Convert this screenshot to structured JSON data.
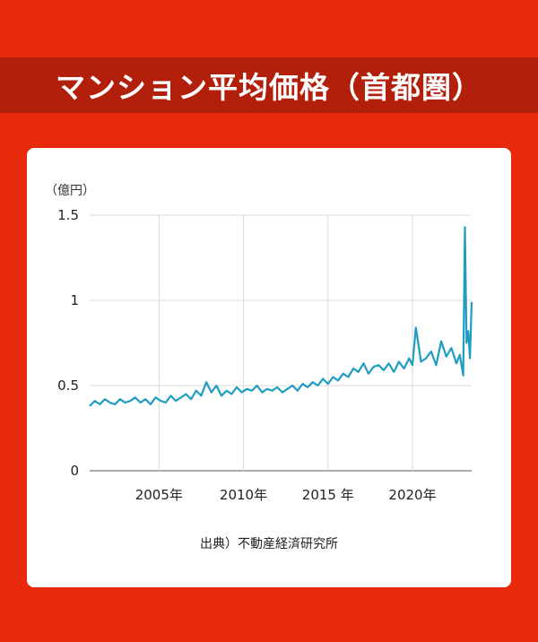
{
  "title": "マンション平均価格（首都圏）",
  "source": "出典）不動産経済研究所",
  "colors": {
    "background": "#e8290b",
    "band": "#b2200c",
    "line": "#1f9cc2",
    "grid": "#d9d9d9"
  },
  "chart_data": {
    "type": "line",
    "unit_label": "（億円）",
    "ylim": [
      0,
      1.5
    ],
    "xlim": [
      2000.9,
      2023.5
    ],
    "y_ticks": [
      "0",
      "0.5",
      "1",
      "1.5"
    ],
    "x_ticks": [
      "2005年",
      "2010年",
      "2015 年",
      "2020年"
    ],
    "grid": "vertical and horizontal",
    "series": [
      {
        "x": [
          2000.9,
          2001.2,
          2001.5,
          2001.8,
          2002.1,
          2002.4,
          2002.7,
          2003.0,
          2003.3,
          2003.6,
          2003.9,
          2004.2,
          2004.5,
          2004.8,
          2005.1,
          2005.4,
          2005.7,
          2006.0,
          2006.3,
          2006.6,
          2006.9,
          2007.2,
          2007.5,
          2007.8,
          2008.1,
          2008.4,
          2008.7,
          2009.0,
          2009.3,
          2009.6,
          2009.9,
          2010.2,
          2010.5,
          2010.8,
          2011.1,
          2011.4,
          2011.7,
          2012.0,
          2012.3,
          2012.6,
          2012.9,
          2013.2,
          2013.5,
          2013.8,
          2014.1,
          2014.4,
          2014.7,
          2015.0,
          2015.3,
          2015.6,
          2015.9,
          2016.2,
          2016.5,
          2016.8,
          2017.1,
          2017.4,
          2017.7,
          2018.0,
          2018.3,
          2018.6,
          2018.9,
          2019.2,
          2019.5,
          2019.8,
          2020.0,
          2020.2,
          2020.5,
          2020.8,
          2021.1,
          2021.4,
          2021.7,
          2022.0,
          2022.3,
          2022.6,
          2022.8,
          2023.0,
          2023.1,
          2023.2,
          2023.3,
          2023.4,
          2023.5
        ],
        "y": [
          0.38,
          0.41,
          0.39,
          0.42,
          0.4,
          0.39,
          0.42,
          0.4,
          0.41,
          0.43,
          0.4,
          0.42,
          0.39,
          0.43,
          0.41,
          0.4,
          0.44,
          0.41,
          0.43,
          0.45,
          0.42,
          0.47,
          0.44,
          0.52,
          0.46,
          0.5,
          0.44,
          0.47,
          0.45,
          0.49,
          0.46,
          0.48,
          0.47,
          0.5,
          0.46,
          0.48,
          0.47,
          0.49,
          0.46,
          0.48,
          0.5,
          0.47,
          0.51,
          0.49,
          0.52,
          0.5,
          0.54,
          0.51,
          0.55,
          0.53,
          0.57,
          0.55,
          0.6,
          0.58,
          0.63,
          0.57,
          0.61,
          0.62,
          0.59,
          0.63,
          0.58,
          0.64,
          0.6,
          0.66,
          0.62,
          0.84,
          0.64,
          0.66,
          0.7,
          0.62,
          0.76,
          0.67,
          0.72,
          0.63,
          0.68,
          0.56,
          1.43,
          0.75,
          0.82,
          0.66,
          0.99
        ]
      }
    ]
  }
}
